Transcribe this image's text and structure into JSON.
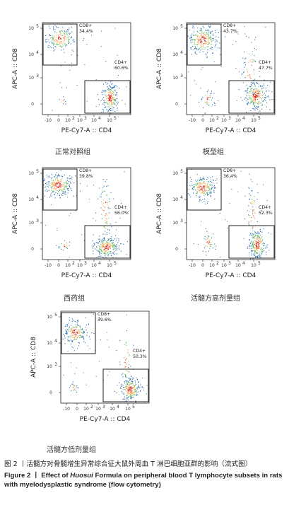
{
  "axes": {
    "xlabel": "PE-Cy7-A :: CD4",
    "ylabel": "APC-A :: CD8",
    "x_ticks": [
      "-10",
      "0",
      "10",
      "10",
      "10",
      "10"
    ],
    "y_ticks": [
      "10",
      "10",
      "10",
      "0"
    ],
    "y_tick_exps": [
      "5",
      "4",
      "3",
      ""
    ],
    "x_tick_exps": [
      "",
      "",
      "2",
      "3",
      "4",
      "5"
    ]
  },
  "gates": {
    "cd8_name": "CD8+",
    "cd4_name": "CD4+"
  },
  "chart_data": [
    {
      "type": "scatter",
      "group": "正常对照组",
      "cd8_pct": "34.4%",
      "cd4_pct": "60.6%",
      "xlabel": "PE-Cy7-A :: CD4",
      "ylabel": "APC-A :: CD8"
    },
    {
      "type": "scatter",
      "group": "模型组",
      "cd8_pct": "43.7%",
      "cd4_pct": "47.7%",
      "xlabel": "PE-Cy7-A :: CD4",
      "ylabel": "APC-A :: CD8"
    },
    {
      "type": "scatter",
      "group": "西药组",
      "cd8_pct": "39.8%",
      "cd4_pct": "56.0%",
      "xlabel": "PE-Cy7-A :: CD4",
      "ylabel": "APC-A :: CD8"
    },
    {
      "type": "scatter",
      "group": "活髓方高剂量组",
      "cd8_pct": "36.4%",
      "cd4_pct": "52.3%",
      "xlabel": "PE-Cy7-A :: CD4",
      "ylabel": "APC-A :: CD8"
    },
    {
      "type": "scatter",
      "group": "活髓方低剂量组",
      "cd8_pct": "39.6%",
      "cd4_pct": "50.3%",
      "xlabel": "PE-Cy7-A :: CD4",
      "ylabel": "APC-A :: CD8"
    }
  ],
  "caption": {
    "cn": "图 2 丨活髓方对骨髓增生异常综合征大鼠外周血 T 淋巴细胞亚群的影响（流式图）",
    "en_prefix": "Figure 2 丨 Effect of ",
    "en_italic": "Huosui",
    "en_suffix": " Formula on peripheral blood T lymphocyte subsets in rats with myelodysplastic syndrome (flow cytometry)"
  },
  "colors": {
    "dense_core": "#d7301f",
    "mid": "#fdae61",
    "green": "#66bd63",
    "sparse": "#2166ac",
    "axis": "#222222"
  }
}
